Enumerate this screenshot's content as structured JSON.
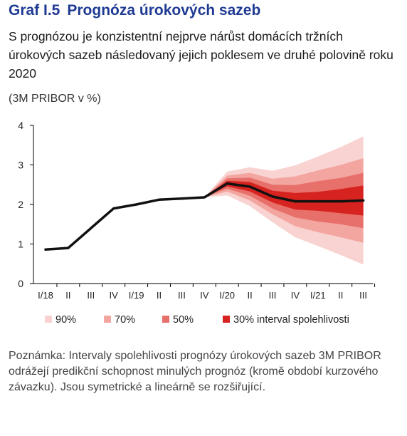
{
  "header": {
    "number": "Graf I.5",
    "title": "Prognóza úrokových sazeb",
    "subtitle": "S prognózou je konzistentní nejprve nárůst domácích tržních úrokových sazeb následovaný jejich poklesem ve druhé polovině roku 2020",
    "unit": "(3M PRIBOR v %)"
  },
  "note": "Poznámka: Intervaly spolehlivosti prognózy úrokových sazeb 3M PRIBOR odrážejí predikční schopnost minulých prognóz (kromě období kurzového závazku). Jsou symetrické a lineárně se rozšiřující.",
  "chart_data": {
    "type": "line",
    "categories": [
      "I/18",
      "II",
      "III",
      "IV",
      "I/19",
      "II",
      "III",
      "IV",
      "I/20",
      "II",
      "III",
      "IV",
      "I/21",
      "II",
      "III"
    ],
    "ylim": [
      0,
      4
    ],
    "yticks": [
      0,
      1,
      2,
      3,
      4
    ],
    "grid": false,
    "legend_position": "bottom",
    "series": [
      {
        "values": [
          0.86,
          0.9,
          1.4,
          1.9,
          2.0,
          2.12,
          2.15,
          2.18,
          2.53,
          2.45,
          2.2,
          2.08,
          2.08,
          2.08,
          2.1
        ]
      }
    ],
    "fan_start_index": 7,
    "fan_bands": [
      {
        "name": "90%",
        "color": "#f9d3d1",
        "lower": [
          2.18,
          2.23,
          1.96,
          1.55,
          1.17,
          0.95,
          0.72,
          0.48
        ],
        "upper": [
          2.18,
          2.83,
          2.94,
          2.85,
          2.99,
          3.21,
          3.45,
          3.72
        ]
      },
      {
        "name": "70%",
        "color": "#f3a5a0",
        "lower": [
          2.18,
          2.33,
          2.1,
          1.75,
          1.45,
          1.3,
          1.17,
          1.03
        ],
        "upper": [
          2.18,
          2.73,
          2.8,
          2.65,
          2.71,
          2.86,
          3.0,
          3.17
        ]
      },
      {
        "name": "50%",
        "color": "#e8706b",
        "lower": [
          2.18,
          2.4,
          2.22,
          1.9,
          1.67,
          1.57,
          1.5,
          1.4
        ],
        "upper": [
          2.18,
          2.66,
          2.68,
          2.5,
          2.49,
          2.59,
          2.67,
          2.8
        ]
      },
      {
        "name": "30% interval spolehlivosti",
        "color": "#d7231f",
        "lower": [
          2.18,
          2.46,
          2.33,
          2.05,
          1.87,
          1.84,
          1.78,
          1.72
        ],
        "upper": [
          2.18,
          2.6,
          2.57,
          2.35,
          2.29,
          2.32,
          2.39,
          2.48
        ]
      }
    ],
    "line_color": "#111111"
  }
}
